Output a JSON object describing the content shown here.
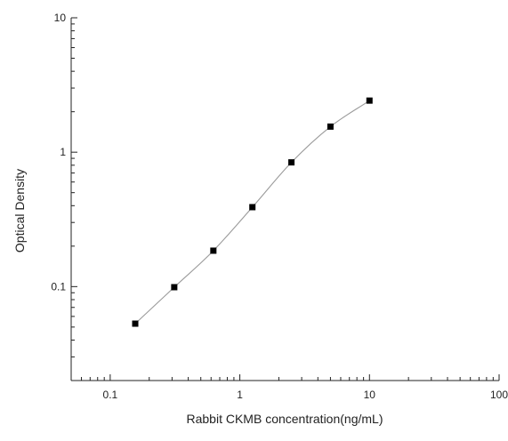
{
  "chart_data": {
    "type": "scatter",
    "title": "",
    "xlabel": "Rabbit CKMB concentration(ng/mL)",
    "ylabel": "Optical Density",
    "x_scale": "log",
    "y_scale": "log",
    "xlim": [
      0.05,
      100
    ],
    "ylim": [
      0.02,
      10
    ],
    "x_ticks": [
      {
        "value": 0.1,
        "label": "0.1"
      },
      {
        "value": 1,
        "label": "1"
      },
      {
        "value": 10,
        "label": "10"
      },
      {
        "value": 100,
        "label": "100"
      }
    ],
    "y_ticks": [
      {
        "value": 0.1,
        "label": "0.1"
      },
      {
        "value": 1,
        "label": "1"
      },
      {
        "value": 10,
        "label": "10"
      }
    ],
    "grid": false,
    "legend": "none",
    "series": [
      {
        "x": [
          0.156,
          0.312,
          0.625,
          1.25,
          2.5,
          5,
          10
        ],
        "y": [
          0.053,
          0.099,
          0.185,
          0.39,
          0.84,
          1.55,
          2.42
        ],
        "marker": "square",
        "color": "#000000",
        "fit_curve": true,
        "curve_color": "#9a9a9a"
      }
    ]
  }
}
